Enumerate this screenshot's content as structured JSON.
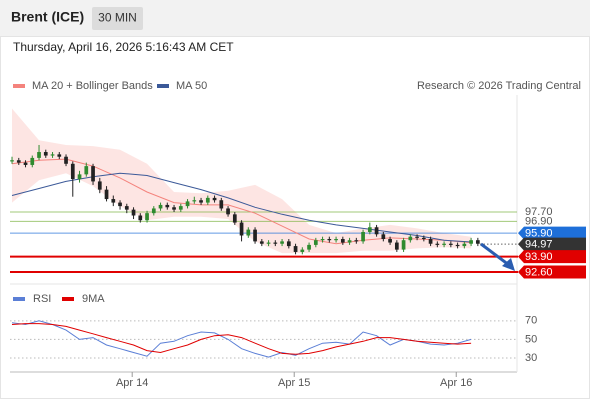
{
  "header": {
    "title": "Brent (ICE)",
    "interval": "30 MIN"
  },
  "timestamp": "Thursday, April 16, 2026 5:16:43 AM CET",
  "chart_data": [
    {
      "type": "candlestick",
      "credit": "Research © 2026 Trading Central",
      "xlim": [
        -0.3,
        74.8
      ],
      "ylim": [
        91.66,
        107.65
      ],
      "up_color": "#2f8a2f",
      "down_color": "#222222",
      "band_color": "#fde0de",
      "x": [
        0,
        1,
        2,
        3,
        4,
        5,
        6,
        7,
        8,
        9,
        10,
        11,
        12,
        13,
        14,
        15,
        16,
        17,
        18,
        19,
        20,
        21,
        22,
        23,
        24,
        25,
        26,
        27,
        28,
        29,
        30,
        31,
        32,
        33,
        34,
        35,
        36,
        37,
        38,
        39,
        40,
        41,
        42,
        43,
        44,
        45,
        46,
        47,
        48,
        49,
        50,
        51,
        52,
        53,
        54,
        55,
        56,
        57,
        58,
        59,
        60,
        61,
        62,
        63,
        64,
        65,
        66,
        67,
        68,
        69
      ],
      "open": [
        102.0,
        102.1,
        101.9,
        101.7,
        102.3,
        102.8,
        102.5,
        102.6,
        102.4,
        101.8,
        100.5,
        100.9,
        101.6,
        100.3,
        99.6,
        98.8,
        98.5,
        98.2,
        97.9,
        97.4,
        97.0,
        97.6,
        98.0,
        98.3,
        98.1,
        97.9,
        98.2,
        98.6,
        98.7,
        98.5,
        98.9,
        98.7,
        98.0,
        97.5,
        96.8,
        95.7,
        96.2,
        95.2,
        95.0,
        95.1,
        95.0,
        95.2,
        94.8,
        94.3,
        94.5,
        94.9,
        95.3,
        95.4,
        95.3,
        95.4,
        95.1,
        95.3,
        95.2,
        96.0,
        96.4,
        95.8,
        95.4,
        95.1,
        94.5,
        95.3,
        95.6,
        95.5,
        95.4,
        95.0,
        94.9,
        95.0,
        94.9,
        94.8,
        95.0,
        95.3
      ],
      "high": [
        102.4,
        102.3,
        102.1,
        102.5,
        103.4,
        103.0,
        102.8,
        102.8,
        102.6,
        102.0,
        101.2,
        101.9,
        101.8,
        100.6,
        99.9,
        99.1,
        98.7,
        98.4,
        98.1,
        97.6,
        97.8,
        98.2,
        98.5,
        98.5,
        98.3,
        98.4,
        98.8,
        99.0,
        98.9,
        99.1,
        99.1,
        98.9,
        98.2,
        97.7,
        97.0,
        96.4,
        96.4,
        95.4,
        95.3,
        95.3,
        95.4,
        95.4,
        95.0,
        94.7,
        95.1,
        95.5,
        95.6,
        95.6,
        95.6,
        95.6,
        95.5,
        95.5,
        96.2,
        96.8,
        96.6,
        96.0,
        95.6,
        95.3,
        95.5,
        95.8,
        95.8,
        95.7,
        95.6,
        95.2,
        95.2,
        95.2,
        95.1,
        95.2,
        95.5,
        95.5
      ],
      "low": [
        101.8,
        101.7,
        101.5,
        101.5,
        102.1,
        102.3,
        102.3,
        102.2,
        101.6,
        99.0,
        100.2,
        100.7,
        100.0,
        99.3,
        98.6,
        98.2,
        97.9,
        97.6,
        97.1,
        96.8,
        96.8,
        97.4,
        97.8,
        97.9,
        97.7,
        97.7,
        98.0,
        98.4,
        98.3,
        98.3,
        98.5,
        97.8,
        97.3,
        96.6,
        95.2,
        95.5,
        95.0,
        94.8,
        94.8,
        94.8,
        94.8,
        94.6,
        94.1,
        94.1,
        94.3,
        94.7,
        95.1,
        95.1,
        95.1,
        94.9,
        94.9,
        95.0,
        95.0,
        95.8,
        95.6,
        95.2,
        94.9,
        94.3,
        94.3,
        95.1,
        95.3,
        95.2,
        94.8,
        94.7,
        94.7,
        94.7,
        94.6,
        94.6,
        94.8,
        94.8
      ],
      "close": [
        102.1,
        101.9,
        101.7,
        102.3,
        102.8,
        102.5,
        102.6,
        102.4,
        101.8,
        100.5,
        100.9,
        101.6,
        100.3,
        99.6,
        98.8,
        98.5,
        98.2,
        97.9,
        97.4,
        97.0,
        97.6,
        98.0,
        98.3,
        98.1,
        97.9,
        98.2,
        98.6,
        98.7,
        98.5,
        98.9,
        98.7,
        98.0,
        97.5,
        96.8,
        95.7,
        96.2,
        95.2,
        95.0,
        95.1,
        95.0,
        95.2,
        94.8,
        94.3,
        94.5,
        94.9,
        95.3,
        95.4,
        95.3,
        95.4,
        95.1,
        95.3,
        95.2,
        96.0,
        96.4,
        95.8,
        95.4,
        95.1,
        94.5,
        95.3,
        95.6,
        95.5,
        95.4,
        95.0,
        94.9,
        95.0,
        94.9,
        94.8,
        95.0,
        95.3,
        95.0
      ],
      "series": [
        {
          "name": "MA 20 + Bollinger Bands",
          "color": "#f4837d",
          "x": [
            0,
            4,
            8,
            12,
            16,
            20,
            24,
            28,
            32,
            36,
            40,
            44,
            48,
            52,
            56,
            60,
            64,
            68
          ],
          "values": [
            101.8,
            102.1,
            102.2,
            101.6,
            100.6,
            99.4,
            98.5,
            98.3,
            98.3,
            97.6,
            96.5,
            95.4,
            95.0,
            95.3,
            95.5,
            95.4,
            95.3,
            95.1
          ],
          "upper": [
            106.5,
            103.8,
            103.4,
            103.3,
            103.0,
            101.8,
            99.4,
            99.3,
            99.5,
            100.0,
            98.8,
            96.6,
            95.9,
            96.3,
            96.6,
            96.3,
            95.9,
            95.6
          ],
          "lower": [
            98.5,
            100.4,
            101.0,
            99.9,
            98.2,
            97.0,
            97.3,
            97.3,
            97.1,
            95.2,
            94.2,
            94.2,
            94.2,
            94.4,
            94.4,
            94.6,
            94.7,
            94.6
          ]
        },
        {
          "name": "MA 50",
          "color": "#3b5998",
          "x": [
            0,
            4,
            8,
            12,
            16,
            20,
            24,
            28,
            32,
            36,
            40,
            44,
            48,
            52,
            56,
            60,
            64,
            68
          ],
          "values": [
            99.1,
            99.7,
            100.3,
            100.7,
            101.0,
            100.8,
            100.2,
            99.6,
            98.9,
            98.1,
            97.5,
            97.0,
            96.6,
            96.3,
            96.0,
            95.7,
            95.3,
            95.15
          ]
        }
      ],
      "levels": [
        {
          "value": 97.7,
          "label": "97.70",
          "color": "#7cb342",
          "kind": "resistance"
        },
        {
          "value": 96.9,
          "label": "96.90",
          "color": "#7cb342",
          "kind": "resistance"
        },
        {
          "value": 95.9,
          "label": "95.90",
          "color": "#1e6fd9",
          "kind": "pivot"
        },
        {
          "value": 94.97,
          "label": "94.97",
          "color": "#333333",
          "kind": "last"
        },
        {
          "value": 93.9,
          "label": "93.90",
          "color": "#e00000",
          "kind": "support"
        },
        {
          "value": 92.6,
          "label": "92.60",
          "color": "#e00000",
          "kind": "support"
        }
      ]
    },
    {
      "type": "line",
      "xlim": [
        -0.3,
        74.8
      ],
      "ylim": [
        15,
        87
      ],
      "yticks": [
        30,
        50,
        70
      ],
      "grid": true,
      "xticks": [
        {
          "value": 17.8,
          "label": "Apr 14"
        },
        {
          "value": 41.8,
          "label": "Apr 15"
        },
        {
          "value": 65.8,
          "label": "Apr 16"
        }
      ],
      "series": [
        {
          "name": "RSI",
          "color": "#5b7fd6",
          "x": [
            0,
            2,
            4,
            6,
            8,
            10,
            12,
            14,
            16,
            18,
            20,
            22,
            24,
            26,
            28,
            30,
            32,
            34,
            36,
            38,
            40,
            42,
            44,
            46,
            48,
            50,
            52,
            54,
            56,
            58,
            60,
            62,
            64,
            66,
            68
          ],
          "values": [
            68,
            66,
            70,
            66,
            60,
            50,
            52,
            44,
            40,
            36,
            32,
            46,
            48,
            54,
            58,
            57,
            50,
            40,
            35,
            31,
            36,
            33,
            40,
            46,
            47,
            45,
            58,
            54,
            44,
            50,
            48,
            45,
            44,
            46,
            50
          ]
        },
        {
          "name": "9MA",
          "color": "#e00000",
          "x": [
            0,
            2,
            4,
            6,
            8,
            10,
            12,
            14,
            16,
            18,
            20,
            22,
            24,
            26,
            28,
            30,
            32,
            34,
            36,
            38,
            40,
            42,
            44,
            46,
            48,
            50,
            52,
            54,
            56,
            58,
            60,
            62,
            64,
            66,
            68
          ],
          "values": [
            66,
            67,
            67,
            66,
            64,
            60,
            56,
            52,
            48,
            44,
            38,
            36,
            40,
            44,
            50,
            54,
            55,
            52,
            46,
            40,
            35,
            34,
            35,
            38,
            42,
            45,
            48,
            52,
            52,
            50,
            48,
            47,
            46,
            45,
            46
          ]
        }
      ]
    }
  ]
}
